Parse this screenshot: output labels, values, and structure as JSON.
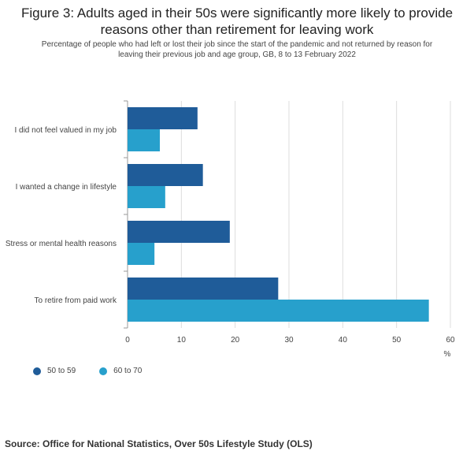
{
  "title_line1": "Figure 3: Adults aged in their 50s were significantly more likely to provide",
  "title_line2": "reasons other than retirement for leaving work",
  "subtitle_line1": "Percentage of people who had left or lost their job since the start of the pandemic and not returned by reason for",
  "subtitle_line2": "leaving their previous job and age group, GB, 8 to 13 February 2022",
  "source": "Source: Office for National Statistics, Over 50s Lifestyle Study (OLS)",
  "colors": {
    "series1": "#1f5c99",
    "series2": "#27a0cc",
    "grid": "#dddddd",
    "axis": "#555555"
  },
  "chart_data": {
    "type": "bar",
    "orientation": "horizontal",
    "categories": [
      "I did not feel valued in my job",
      "I wanted a change in lifestyle",
      "Stress or mental health reasons",
      "To retire from paid work"
    ],
    "series": [
      {
        "name": "50 to 59",
        "values": [
          13,
          14,
          19,
          28
        ]
      },
      {
        "name": "60 to 70",
        "values": [
          6,
          7,
          5,
          56
        ]
      }
    ],
    "xlim": [
      0,
      60
    ],
    "xticks": [
      0,
      10,
      20,
      30,
      40,
      50,
      60
    ],
    "xunit": "%",
    "grid": true,
    "legend_position": "bottom-left"
  }
}
